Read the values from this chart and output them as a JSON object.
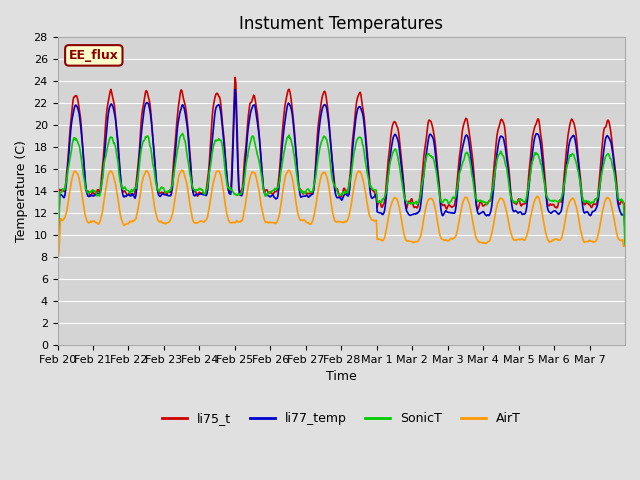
{
  "title": "Instument Temperatures",
  "ylabel": "Temperature (C)",
  "xlabel": "Time",
  "ylim": [
    0,
    28
  ],
  "yticks": [
    0,
    2,
    4,
    6,
    8,
    10,
    12,
    14,
    16,
    18,
    20,
    22,
    24,
    26,
    28
  ],
  "xtick_labels": [
    "Feb 20",
    "Feb 21",
    "Feb 22",
    "Feb 23",
    "Feb 24",
    "Feb 25",
    "Feb 26",
    "Feb 27",
    "Feb 28",
    "Mar 1",
    "Mar 2",
    "Mar 3",
    "Mar 4",
    "Mar 5",
    "Mar 6",
    "Mar 7"
  ],
  "colors": {
    "li75_t": "#cc0000",
    "li77_temp": "#0000cc",
    "SonicT": "#00cc00",
    "AirT": "#ff9900"
  },
  "annotation_text": "EE_flux",
  "legend_labels": [
    "li75_t",
    "li77_temp",
    "SonicT",
    "AirT"
  ],
  "line_width": 1.2,
  "title_fontsize": 12,
  "axis_fontsize": 9,
  "tick_fontsize": 8
}
